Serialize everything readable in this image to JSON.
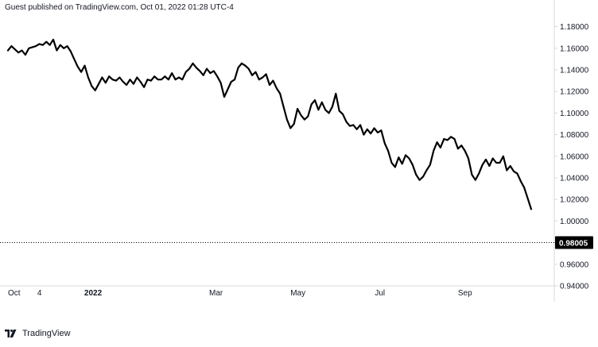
{
  "header": {
    "publisher_text": "Guest published on TradingView.com, Oct 01, 2022 01:28 UTC-4"
  },
  "footer": {
    "brand": "TradingView",
    "logo_icon": "tradingview-logo-icon"
  },
  "colors": {
    "line": "#000000",
    "price_label_bg": "#000000",
    "price_label_text": "#ffffff",
    "axis_text": "#131722",
    "axis_line": "#d9d9d9"
  },
  "chart_data": {
    "type": "line",
    "title": "",
    "xlabel": "",
    "ylabel": "",
    "grid": false,
    "ylim": [
      0.94,
      1.19
    ],
    "y_ticks": [
      "1.18000",
      "1.16000",
      "1.14000",
      "1.12000",
      "1.10000",
      "1.08000",
      "1.06000",
      "1.04000",
      "1.02000",
      "1.00000",
      "0.98000",
      "0.96000",
      "0.94000"
    ],
    "x_tick_labels": [
      {
        "label": "Oct",
        "t": 0
      },
      {
        "label": "4",
        "t": 10
      },
      {
        "label": "2022",
        "t": 27
      },
      {
        "label": "Mar",
        "t": 66
      },
      {
        "label": "May",
        "t": 92
      },
      {
        "label": "Jul",
        "t": 118
      },
      {
        "label": "Sep",
        "t": 145
      }
    ],
    "last_price_label": "0.98005",
    "last_price": 0.98005,
    "t_max": 166,
    "series": [
      {
        "values": [
          1.158,
          1.162,
          1.159,
          1.156,
          1.158,
          1.154,
          1.16,
          1.161,
          1.162,
          1.164,
          1.163,
          1.166,
          1.163,
          1.168,
          1.158,
          1.163,
          1.16,
          1.162,
          1.157,
          1.15,
          1.143,
          1.138,
          1.144,
          1.133,
          1.125,
          1.121,
          1.127,
          1.133,
          1.128,
          1.134,
          1.131,
          1.13,
          1.133,
          1.129,
          1.126,
          1.131,
          1.127,
          1.133,
          1.129,
          1.124,
          1.131,
          1.13,
          1.134,
          1.131,
          1.131,
          1.134,
          1.131,
          1.137,
          1.131,
          1.133,
          1.131,
          1.138,
          1.141,
          1.146,
          1.142,
          1.139,
          1.135,
          1.141,
          1.137,
          1.139,
          1.134,
          1.128,
          1.115,
          1.122,
          1.129,
          1.131,
          1.142,
          1.146,
          1.144,
          1.141,
          1.135,
          1.138,
          1.131,
          1.133,
          1.136,
          1.126,
          1.13,
          1.123,
          1.118,
          1.106,
          1.094,
          1.086,
          1.09,
          1.104,
          1.098,
          1.094,
          1.097,
          1.108,
          1.112,
          1.103,
          1.11,
          1.103,
          1.1,
          1.106,
          1.118,
          1.102,
          1.099,
          1.092,
          1.088,
          1.089,
          1.085,
          1.089,
          1.08,
          1.085,
          1.081,
          1.086,
          1.082,
          1.084,
          1.072,
          1.065,
          1.054,
          1.05,
          1.059,
          1.053,
          1.061,
          1.058,
          1.052,
          1.043,
          1.038,
          1.041,
          1.047,
          1.052,
          1.065,
          1.073,
          1.068,
          1.076,
          1.075,
          1.078,
          1.076,
          1.067,
          1.07,
          1.065,
          1.058,
          1.043,
          1.038,
          1.044,
          1.052,
          1.057,
          1.051,
          1.058,
          1.054,
          1.054,
          1.06,
          1.047,
          1.051,
          1.046,
          1.044,
          1.037,
          1.031,
          1.021,
          1.011
        ]
      }
    ]
  }
}
